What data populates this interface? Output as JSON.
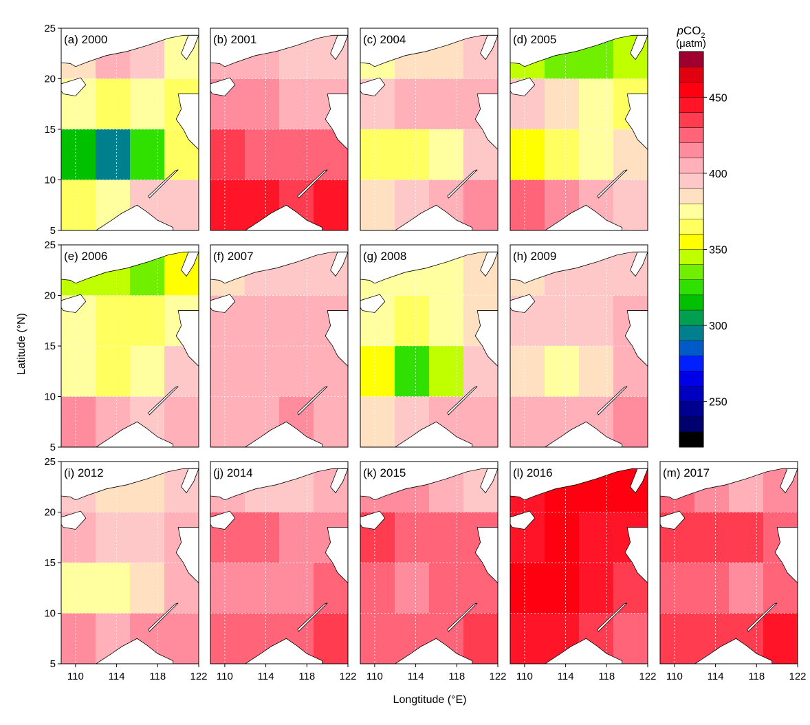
{
  "chart_data": {
    "type": "contour",
    "xlabel": "Longtitude (°E)",
    "ylabel": "Latitude (°N)",
    "xlim": [
      108.6,
      122
    ],
    "ylim": [
      5,
      25
    ],
    "xticks": [
      110,
      114,
      118,
      122
    ],
    "yticks": [
      5,
      10,
      15,
      20,
      25
    ],
    "grid": true,
    "colorbar": {
      "title_italic": "p",
      "title_main": "CO",
      "title_sub": "2",
      "unit": "(μatm)",
      "levels": [
        220,
        230,
        240,
        250,
        260,
        270,
        280,
        290,
        300,
        310,
        320,
        330,
        340,
        350,
        360,
        370,
        380,
        390,
        400,
        410,
        420,
        430,
        440,
        450,
        460,
        470,
        480
      ],
      "colors": [
        "#000000",
        "#00006e",
        "#000090",
        "#0000c0",
        "#0000e8",
        "#0020ff",
        "#005ac8",
        "#00808c",
        "#00a050",
        "#00c000",
        "#30e000",
        "#70f000",
        "#c0ff00",
        "#ffff00",
        "#ffff60",
        "#ffffa0",
        "#ffe0c0",
        "#ffc8c8",
        "#ffb0b8",
        "#ff8c9c",
        "#ff6478",
        "#ff3c50",
        "#ff1428",
        "#ff0010",
        "#e00010",
        "#a00030"
      ],
      "ticks": [
        250,
        300,
        350,
        400,
        450
      ]
    },
    "panels": [
      {
        "label": "(a) 2000",
        "values": [
          [
            380,
            400,
            390,
            370
          ],
          [
            370,
            360,
            370,
            360
          ],
          [
            310,
            290,
            320,
            360
          ],
          [
            360,
            370,
            390,
            390
          ]
        ]
      },
      {
        "label": "(b) 2001",
        "values": [
          [
            400,
            400,
            390,
            390
          ],
          [
            410,
            410,
            400,
            400
          ],
          [
            430,
            420,
            420,
            420
          ],
          [
            440,
            440,
            430,
            440
          ]
        ]
      },
      {
        "label": "(c) 2004",
        "values": [
          [
            370,
            380,
            380,
            390
          ],
          [
            390,
            400,
            400,
            400
          ],
          [
            360,
            360,
            370,
            390
          ],
          [
            380,
            390,
            400,
            410
          ]
        ]
      },
      {
        "label": "(d) 2005",
        "values": [
          [
            340,
            330,
            330,
            340
          ],
          [
            390,
            380,
            370,
            360
          ],
          [
            350,
            360,
            370,
            380
          ],
          [
            420,
            410,
            400,
            390
          ]
        ]
      },
      {
        "label": "(e) 2006",
        "values": [
          [
            340,
            340,
            330,
            350
          ],
          [
            370,
            360,
            360,
            370
          ],
          [
            370,
            360,
            370,
            390
          ],
          [
            410,
            400,
            390,
            400
          ]
        ]
      },
      {
        "label": "(f) 2007",
        "values": [
          [
            380,
            390,
            390,
            390
          ],
          [
            400,
            400,
            400,
            400
          ],
          [
            400,
            400,
            400,
            400
          ],
          [
            400,
            400,
            410,
            400
          ]
        ]
      },
      {
        "label": "(g) 2008",
        "values": [
          [
            370,
            370,
            370,
            380
          ],
          [
            370,
            360,
            370,
            380
          ],
          [
            350,
            320,
            340,
            390
          ],
          [
            380,
            390,
            400,
            400
          ]
        ]
      },
      {
        "label": "(h) 2009",
        "values": [
          [
            380,
            390,
            390,
            390
          ],
          [
            390,
            390,
            390,
            400
          ],
          [
            380,
            370,
            380,
            400
          ],
          [
            400,
            400,
            400,
            410
          ]
        ]
      },
      {
        "label": "(i) 2012",
        "values": [
          [
            390,
            380,
            380,
            390
          ],
          [
            400,
            390,
            390,
            400
          ],
          [
            370,
            370,
            380,
            400
          ],
          [
            410,
            400,
            410,
            410
          ]
        ]
      },
      {
        "label": "(j) 2014",
        "values": [
          [
            400,
            390,
            390,
            400
          ],
          [
            420,
            420,
            410,
            410
          ],
          [
            410,
            410,
            410,
            420
          ],
          [
            420,
            420,
            420,
            430
          ]
        ]
      },
      {
        "label": "(k) 2015",
        "values": [
          [
            410,
            410,
            400,
            390
          ],
          [
            430,
            420,
            420,
            420
          ],
          [
            420,
            410,
            420,
            420
          ],
          [
            420,
            420,
            420,
            430
          ]
        ]
      },
      {
        "label": "(l) 2016",
        "values": [
          [
            440,
            450,
            450,
            450
          ],
          [
            440,
            450,
            440,
            440
          ],
          [
            450,
            450,
            440,
            430
          ],
          [
            440,
            440,
            430,
            420
          ]
        ]
      },
      {
        "label": "(m) 2017",
        "values": [
          [
            420,
            410,
            400,
            410
          ],
          [
            430,
            430,
            430,
            420
          ],
          [
            420,
            420,
            410,
            420
          ],
          [
            430,
            430,
            430,
            440
          ]
        ]
      }
    ]
  }
}
